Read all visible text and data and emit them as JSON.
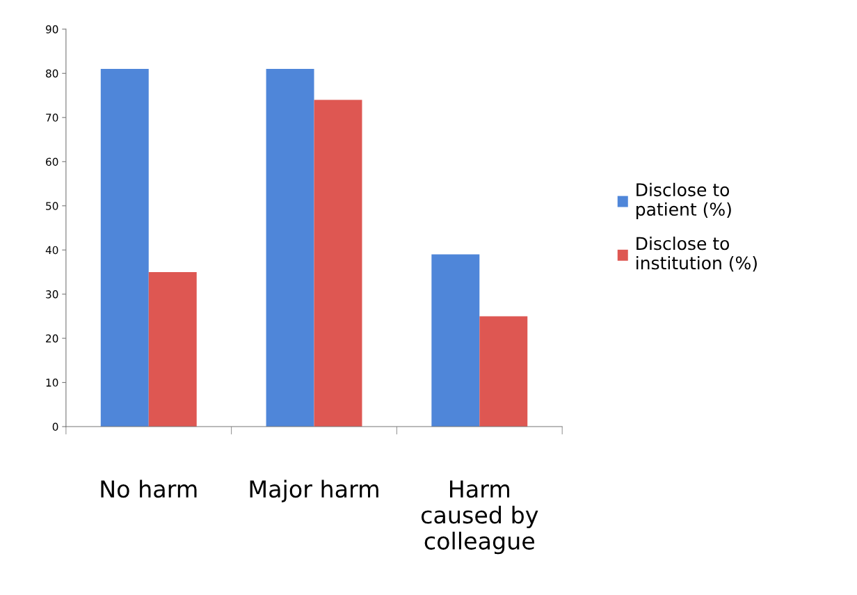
{
  "chart_data": {
    "type": "bar",
    "categories": [
      "No harm",
      "Major harm",
      "Harm\ncaused by\ncolleague"
    ],
    "series": [
      {
        "name": "Disclose to\npatient (%)",
        "color": "#4f86d9",
        "values": [
          81,
          81,
          39
        ]
      },
      {
        "name": "Disclose to\ninstitution (%)",
        "color": "#de5752",
        "values": [
          35,
          74,
          25
        ]
      }
    ],
    "ylim": [
      0,
      90
    ],
    "yticks": [
      0,
      10,
      20,
      30,
      40,
      50,
      60,
      70,
      80,
      90
    ],
    "grid": false,
    "legend": "right"
  }
}
